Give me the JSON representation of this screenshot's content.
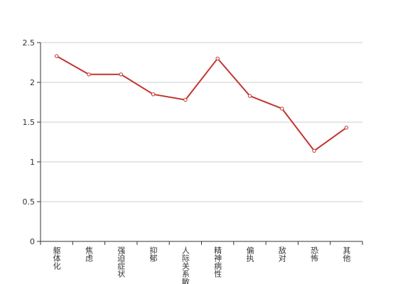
{
  "chart_data": {
    "type": "line",
    "categories": [
      "躯体化",
      "焦虑",
      "强迫症状",
      "抑郁",
      "人际关系敏感",
      "精神病性",
      "偏执",
      "敌对",
      "恐怖",
      "其他"
    ],
    "series": [
      {
        "color": "#c23531",
        "values": [
          2.33,
          2.1,
          2.1,
          1.85,
          1.78,
          2.3,
          1.83,
          1.67,
          1.14,
          1.43
        ]
      }
    ],
    "ylim": [
      0,
      2.5
    ],
    "yticks": [
      0,
      0.5,
      1,
      1.5,
      2,
      2.5
    ],
    "grid": true
  }
}
